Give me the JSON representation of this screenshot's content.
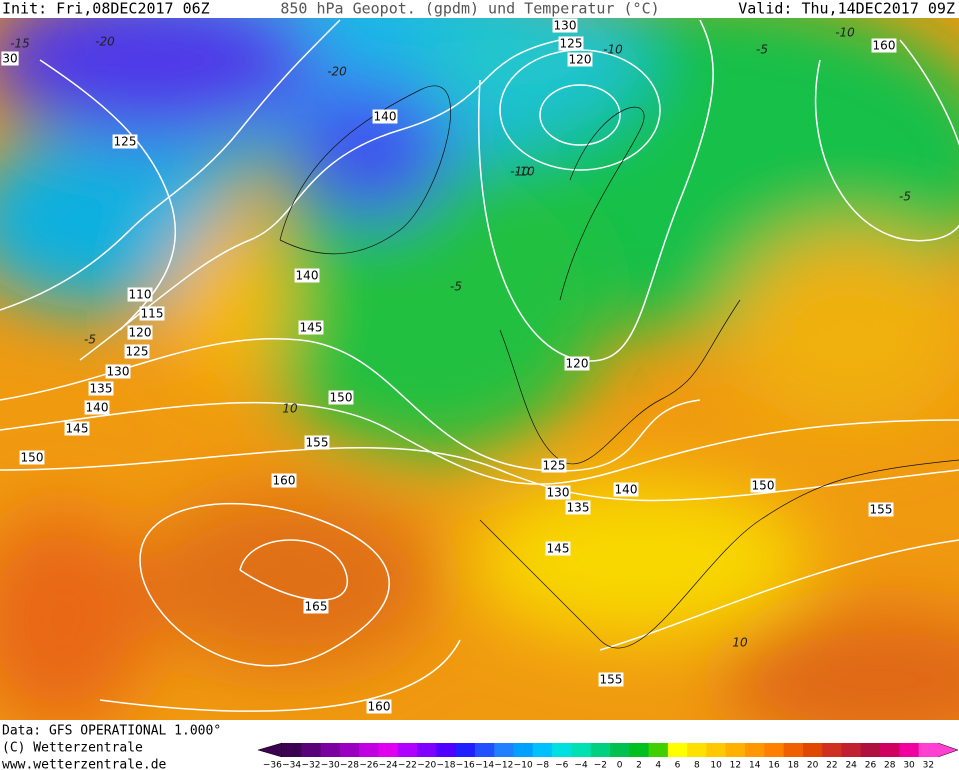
{
  "header": {
    "init": "Init: Fri,08DEC2017 06Z",
    "title": "850 hPa Geopot. (gpdm) und Temperatur (°C)",
    "valid": "Valid: Thu,14DEC2017 09Z"
  },
  "map": {
    "geopotential_labels": [
      "30",
      "130",
      "125",
      "120",
      "160",
      "140",
      "125",
      "140",
      "110",
      "115",
      "120",
      "125",
      "130",
      "135",
      "140",
      "145",
      "150",
      "145",
      "150",
      "155",
      "160",
      "165",
      "160",
      "120",
      "125",
      "130",
      "135",
      "140",
      "145",
      "150",
      "155",
      "155"
    ],
    "temperature_labels": [
      "-15",
      "-20",
      "-20",
      "-10",
      "-10",
      "-5",
      "-10",
      "-5",
      "-5",
      "-5",
      "-10",
      "10",
      "10"
    ]
  },
  "footer": {
    "data": "Data: GFS OPERATIONAL 1.000°",
    "copyright": "(C) Wetterzentrale",
    "url": "www.wetterzentrale.de"
  },
  "colorbar": {
    "labels": [
      "−36",
      "−34",
      "−32",
      "−30",
      "−28",
      "−26",
      "−24",
      "−22",
      "−20",
      "−18",
      "−16",
      "−14",
      "−12",
      "−10",
      "−8",
      "−6",
      "−4",
      "−2",
      "0",
      "2",
      "4",
      "6",
      "8",
      "10",
      "12",
      "14",
      "16",
      "18",
      "20",
      "22",
      "24",
      "26",
      "28",
      "30",
      "32"
    ],
    "colors": [
      "#3c0050",
      "#5a0078",
      "#7a00a0",
      "#9900c0",
      "#c000e0",
      "#e000f0",
      "#b000ff",
      "#8000ff",
      "#5000ff",
      "#2020ff",
      "#2050ff",
      "#2080ff",
      "#00a0ff",
      "#00c0ff",
      "#00e0e0",
      "#00e0b0",
      "#00d080",
      "#00c050",
      "#00c020",
      "#40d000",
      "#ffff00",
      "#ffe000",
      "#ffc800",
      "#ffb000",
      "#ff9800",
      "#ff8000",
      "#f06000",
      "#e04800",
      "#d03020",
      "#c02030",
      "#b01040",
      "#d00060",
      "#f000a0",
      "#ff40d0"
    ]
  }
}
